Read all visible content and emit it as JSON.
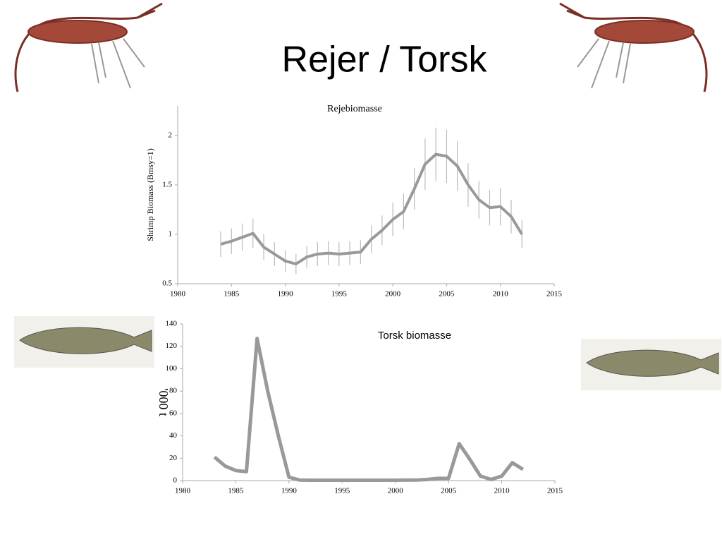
{
  "title": "Rejer / Torsk",
  "chart_data": [
    {
      "type": "line",
      "title": "Rejebiomasse",
      "y_label": "Shrimp Biomass (Bmsy=1)",
      "color": "#999999",
      "x": [
        1984,
        1985,
        1986,
        1987,
        1988,
        1989,
        1990,
        1991,
        1992,
        1993,
        1994,
        1995,
        1996,
        1997,
        1998,
        1999,
        2000,
        2001,
        2002,
        2003,
        2004,
        2005,
        2006,
        2007,
        2008,
        2009,
        2010,
        2011,
        2012
      ],
      "values": [
        0.9,
        0.93,
        0.97,
        1.01,
        0.87,
        0.8,
        0.73,
        0.7,
        0.77,
        0.8,
        0.81,
        0.8,
        0.81,
        0.82,
        0.95,
        1.04,
        1.15,
        1.23,
        1.46,
        1.71,
        1.81,
        1.79,
        1.69,
        1.5,
        1.35,
        1.27,
        1.28,
        1.18,
        1.0
      ],
      "errors": [
        0.13,
        0.13,
        0.14,
        0.15,
        0.13,
        0.12,
        0.11,
        0.1,
        0.11,
        0.12,
        0.12,
        0.12,
        0.12,
        0.12,
        0.14,
        0.15,
        0.17,
        0.18,
        0.21,
        0.26,
        0.27,
        0.27,
        0.25,
        0.22,
        0.19,
        0.18,
        0.19,
        0.17,
        0.14
      ],
      "xlim": [
        1980,
        2015
      ],
      "xticks": [
        1980,
        1985,
        1990,
        1995,
        2000,
        2005,
        2010,
        2015
      ],
      "ylim": [
        0.5,
        2.3
      ],
      "yticks": [
        0.5,
        1,
        1.5,
        2
      ]
    },
    {
      "type": "line",
      "title": "Torsk biomasse",
      "y_label": "'000 t",
      "color": "#999999",
      "x": [
        1983,
        1984,
        1985,
        1986,
        1987,
        1988,
        1989,
        1990,
        1991,
        1992,
        1993,
        1994,
        1995,
        1996,
        1997,
        1998,
        1999,
        2000,
        2001,
        2002,
        2003,
        2004,
        2005,
        2006,
        2007,
        2008,
        2009,
        2010,
        2011,
        2012
      ],
      "values": [
        21,
        13,
        9,
        8,
        127,
        80,
        40,
        3,
        0.5,
        0.3,
        0.3,
        0.3,
        0.3,
        0.3,
        0.3,
        0.3,
        0.3,
        0.3,
        0.5,
        0.5,
        1,
        2,
        2,
        33,
        19,
        4,
        1,
        4,
        16,
        10
      ],
      "xlim": [
        1980,
        2015
      ],
      "xticks": [
        1980,
        1985,
        1990,
        1995,
        2000,
        2005,
        2010,
        2015
      ],
      "ylim": [
        0,
        140
      ],
      "yticks": [
        0,
        20,
        40,
        60,
        80,
        100,
        120,
        140
      ]
    }
  ]
}
